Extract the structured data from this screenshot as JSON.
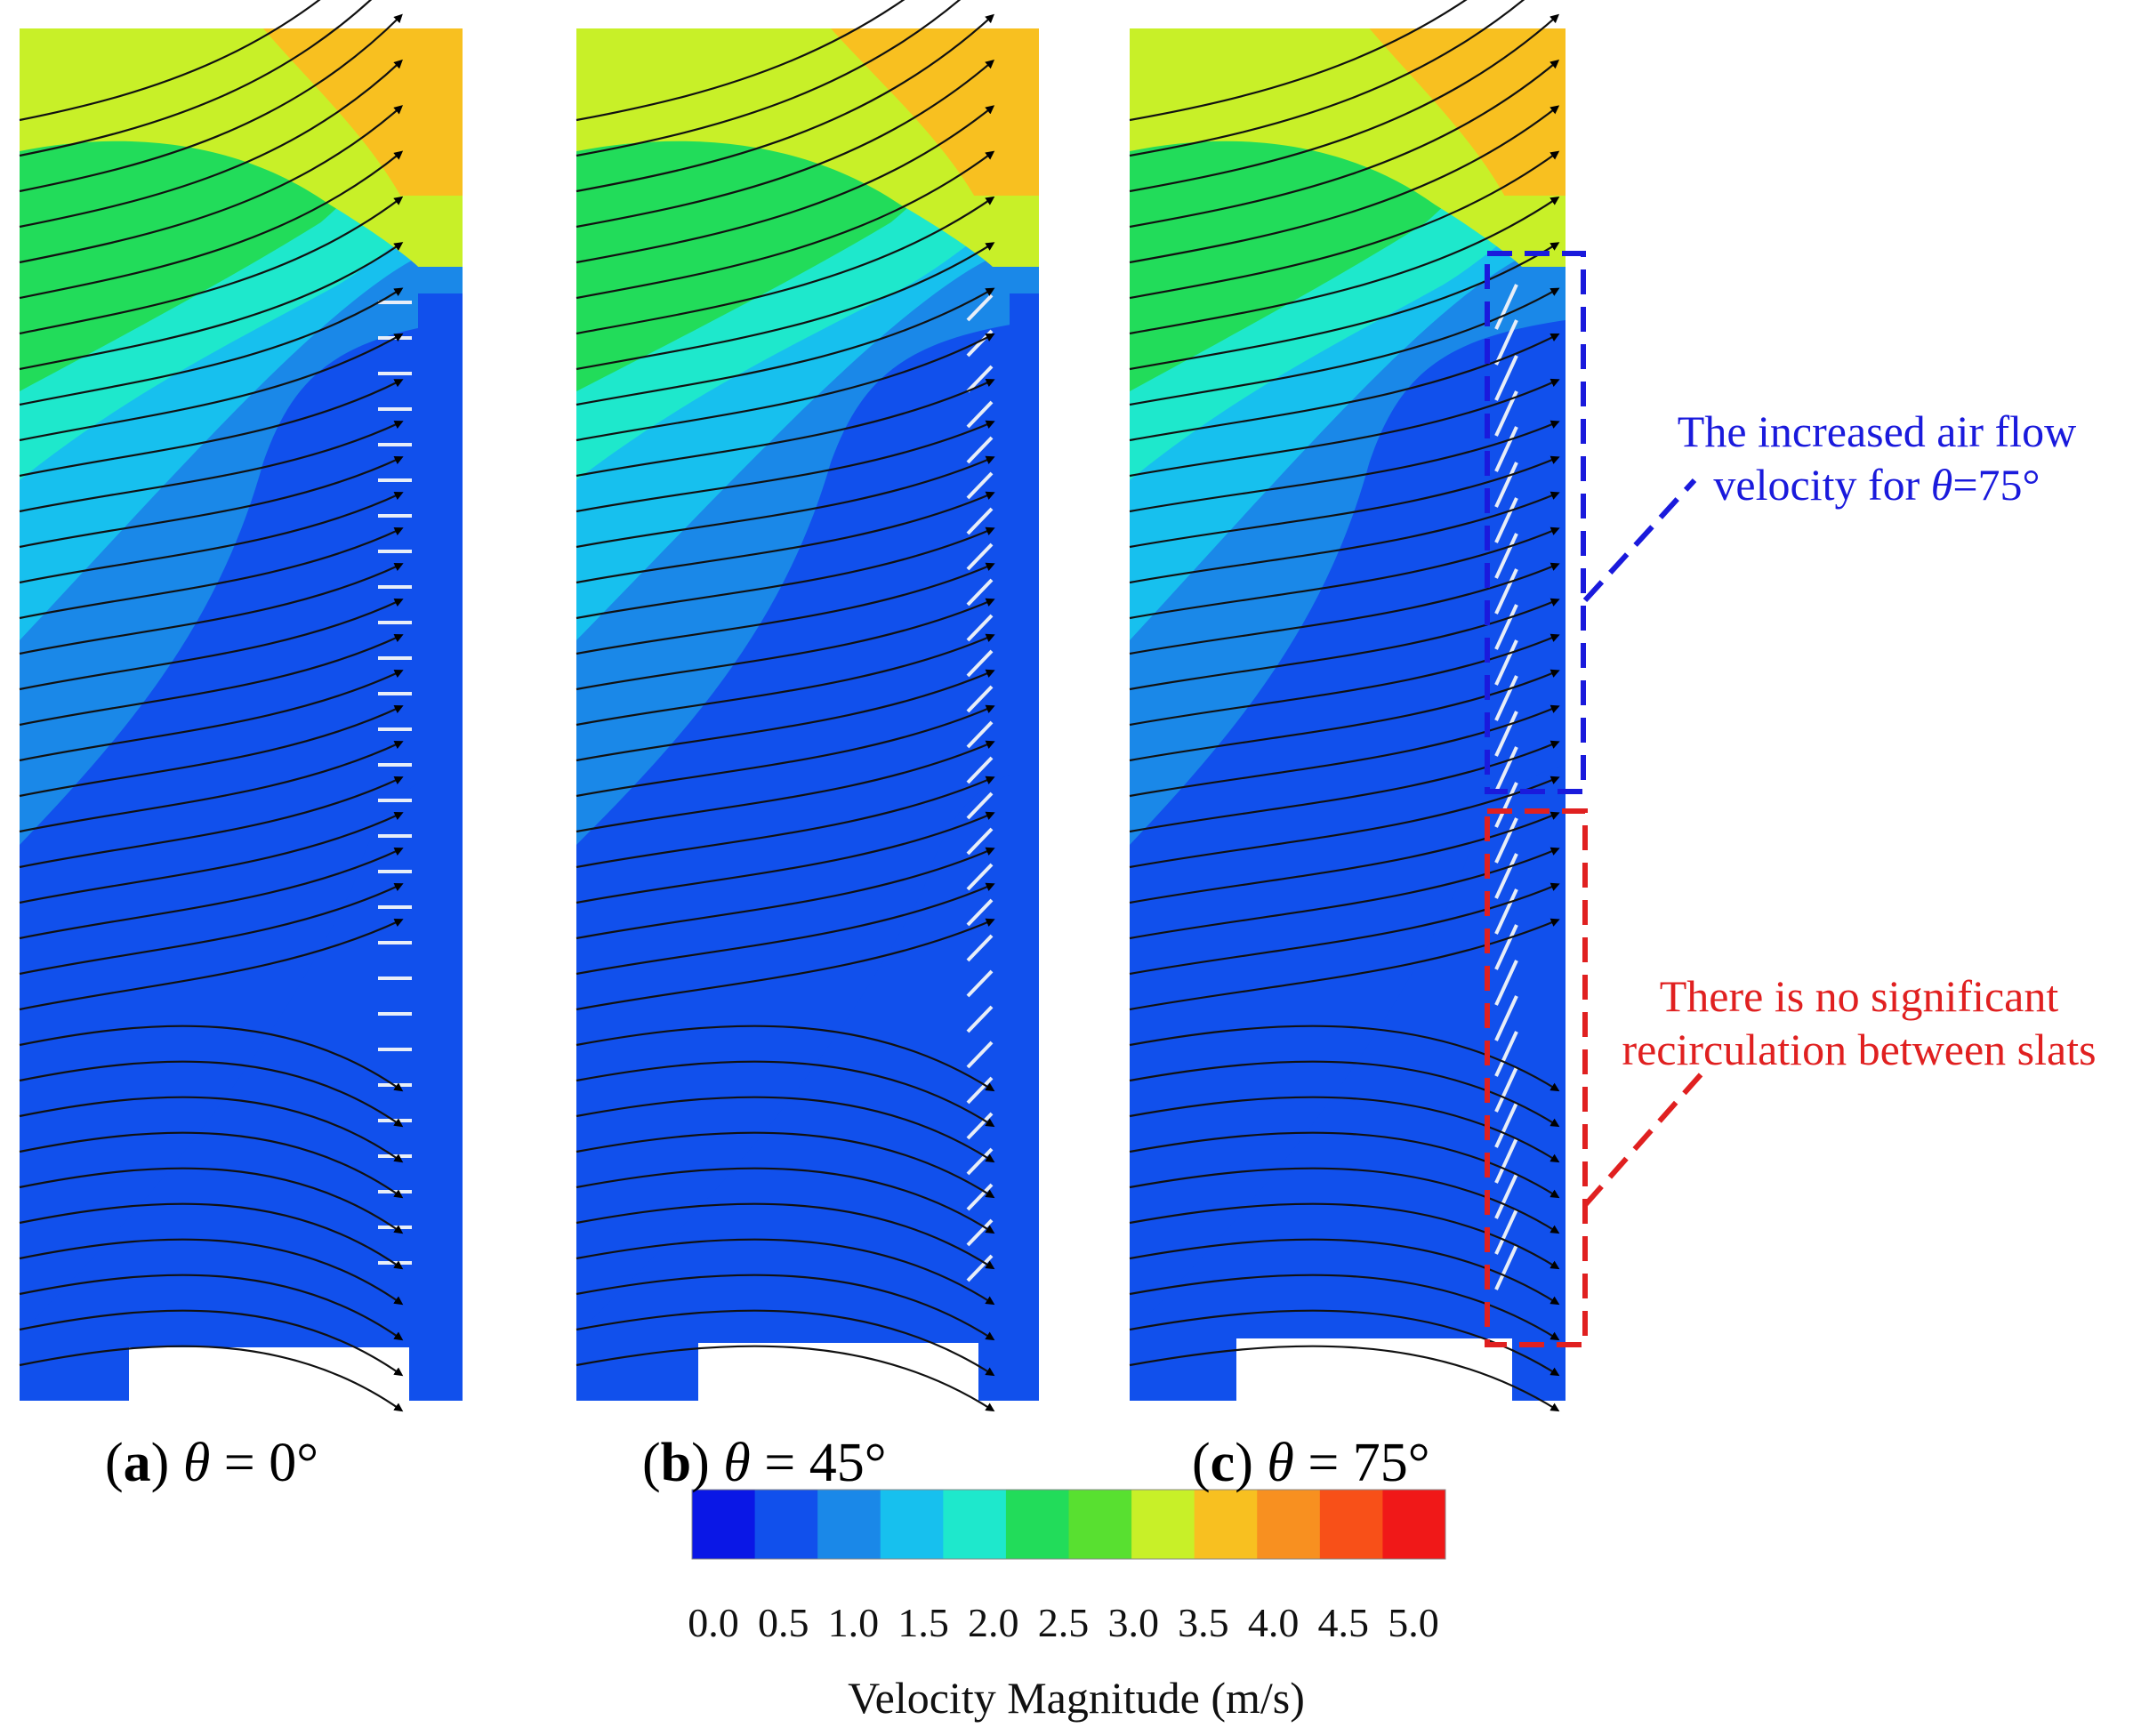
{
  "panels": [
    {
      "letter": "a",
      "theta_symbol": "θ",
      "equals": " = ",
      "angle": "0°"
    },
    {
      "letter": "b",
      "theta_symbol": "θ",
      "equals": " = ",
      "angle": "45°"
    },
    {
      "letter": "c",
      "theta_symbol": "θ",
      "equals": " = ",
      "angle": "75°"
    }
  ],
  "annotations": {
    "blue": {
      "line1": "The increased air flow",
      "line2_pre": "velocity for ",
      "theta_symbol": "θ",
      "line2_post": "=75°",
      "color": "#1a1adc"
    },
    "red": {
      "line1": "There is no significant",
      "line2": "recirculation between slats",
      "color": "#e02020"
    }
  },
  "colorbar": {
    "title": "Velocity Magnitude (m/s)",
    "ticks": [
      "0.0",
      "0.5",
      "1.0",
      "1.5",
      "2.0",
      "2.5",
      "3.0",
      "3.5",
      "4.0",
      "4.5",
      "5.0"
    ],
    "colors": [
      "#0a17e6",
      "#1150ec",
      "#1a88e8",
      "#17c0ee",
      "#1ee8cc",
      "#22dc5a",
      "#58e030",
      "#c8f028",
      "#f8c020",
      "#f89020",
      "#f85018",
      "#f01818"
    ]
  }
}
